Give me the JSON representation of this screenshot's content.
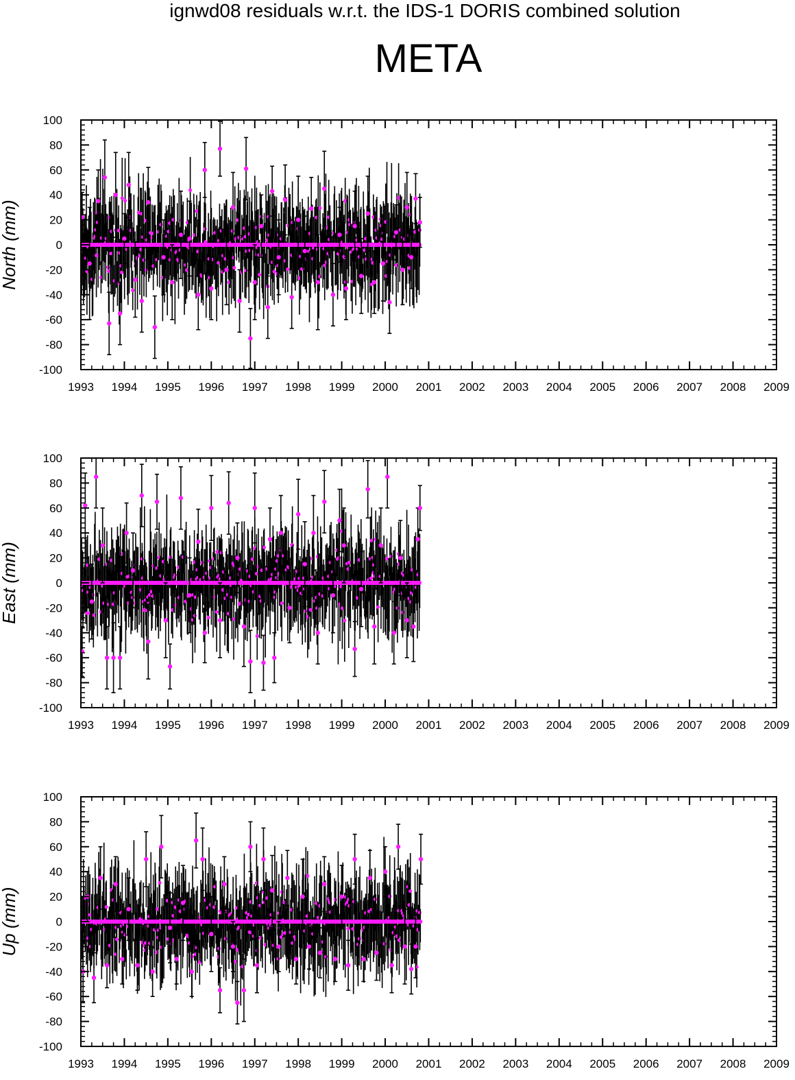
{
  "header": {
    "suptitle": "ignwd08 residuals w.r.t. the IDS-1 DORIS combined solution",
    "station": "META"
  },
  "colors": {
    "marker": "#ff1aff",
    "errorbar": "#000000",
    "axis": "#000000"
  },
  "chart_data": [
    {
      "type": "scatter",
      "panel": "north",
      "title": "",
      "ylabel": "North (mm)",
      "xlabel": "",
      "xlim": [
        1993,
        2009
      ],
      "ylim": [
        -100,
        100
      ],
      "xticks": [
        1993,
        1994,
        1995,
        1996,
        1997,
        1998,
        1999,
        2000,
        2001,
        2002,
        2003,
        2004,
        2005,
        2006,
        2007,
        2008,
        2009
      ],
      "yticks": [
        -100,
        -80,
        -60,
        -40,
        -20,
        0,
        20,
        40,
        60,
        80,
        100
      ],
      "grid": false,
      "error_bars": true,
      "series": [
        {
          "x": [
            1993.03,
            1993.2,
            1993.4,
            1993.55,
            1993.65,
            1993.8,
            1993.9,
            1994.0,
            1994.1,
            1994.25,
            1994.4,
            1994.55,
            1994.7,
            1994.9,
            1995.1,
            1995.3,
            1995.5,
            1995.7,
            1995.85,
            1996.0,
            1996.2,
            1996.35,
            1996.5,
            1996.65,
            1996.8,
            1996.9,
            1997.0,
            1997.15,
            1997.3,
            1997.4,
            1997.55,
            1997.7,
            1997.85,
            1998.0,
            1998.15,
            1998.3,
            1998.45,
            1998.6,
            1998.8,
            1998.95,
            1999.1,
            1999.3,
            1999.45,
            1999.6,
            1999.75,
            1999.95,
            2000.1,
            2000.25,
            2000.4,
            2000.5,
            2000.6,
            2000.7,
            2000.8
          ],
          "y": [
            22,
            -15,
            35,
            54,
            -63,
            40,
            -55,
            5,
            48,
            -28,
            -45,
            34,
            -66,
            -10,
            -30,
            8,
            5,
            -40,
            60,
            -35,
            77,
            -20,
            30,
            -45,
            61,
            -75,
            -30,
            15,
            -50,
            43,
            -10,
            36,
            -42,
            20,
            -5,
            29,
            -30,
            45,
            -40,
            8,
            -35,
            15,
            -25,
            25,
            -30,
            -15,
            -46,
            10,
            -20,
            30,
            -10,
            37,
            18
          ],
          "err": [
            20,
            45,
            25,
            30,
            25,
            34,
            25,
            20,
            26,
            30,
            25,
            28,
            25,
            30,
            30,
            35,
            30,
            28,
            22,
            25,
            22,
            28,
            28,
            25,
            25,
            24,
            30,
            25,
            25,
            20,
            30,
            28,
            25,
            35,
            28,
            25,
            38,
            30,
            25,
            22,
            25,
            28,
            30,
            30,
            25,
            30,
            25,
            22,
            28,
            28,
            25,
            20,
            20
          ]
        }
      ]
    },
    {
      "type": "scatter",
      "panel": "east",
      "title": "",
      "ylabel": "East (mm)",
      "xlabel": "",
      "xlim": [
        1993,
        2009
      ],
      "ylim": [
        -100,
        100
      ],
      "xticks": [
        1993,
        1994,
        1995,
        1996,
        1997,
        1998,
        1999,
        2000,
        2001,
        2002,
        2003,
        2004,
        2005,
        2006,
        2007,
        2008,
        2009
      ],
      "yticks": [
        -100,
        -80,
        -60,
        -40,
        -20,
        0,
        20,
        40,
        60,
        80,
        100
      ],
      "grid": false,
      "error_bars": true,
      "series": [
        {
          "x": [
            1993.03,
            1993.1,
            1993.25,
            1993.35,
            1993.5,
            1993.6,
            1993.75,
            1993.9,
            1994.05,
            1994.2,
            1994.4,
            1994.55,
            1994.75,
            1994.95,
            1995.05,
            1995.3,
            1995.5,
            1995.7,
            1995.85,
            1996.0,
            1996.2,
            1996.4,
            1996.6,
            1996.75,
            1996.9,
            1997.0,
            1997.2,
            1997.35,
            1997.45,
            1997.6,
            1997.8,
            1998.0,
            1998.15,
            1998.35,
            1998.45,
            1998.6,
            1998.8,
            1998.95,
            1999.05,
            1999.3,
            1999.45,
            1999.6,
            1999.75,
            1999.9,
            2000.05,
            2000.2,
            2000.35,
            2000.5,
            2000.65,
            2000.75,
            2000.8
          ],
          "y": [
            -55,
            62,
            -15,
            85,
            30,
            -60,
            -60,
            -60,
            40,
            10,
            70,
            -47,
            65,
            -30,
            -67,
            68,
            -10,
            33,
            -40,
            60,
            -30,
            64,
            20,
            -35,
            -63,
            60,
            -64,
            35,
            -60,
            40,
            -20,
            55,
            15,
            40,
            -40,
            65,
            -10,
            50,
            30,
            -53,
            -5,
            75,
            -35,
            30,
            85,
            -40,
            20,
            -30,
            -35,
            35,
            60
          ],
          "err": [
            20,
            26,
            30,
            25,
            30,
            25,
            28,
            25,
            24,
            30,
            25,
            30,
            22,
            30,
            18,
            25,
            30,
            26,
            24,
            26,
            30,
            25,
            28,
            32,
            25,
            28,
            22,
            25,
            20,
            30,
            28,
            28,
            34,
            30,
            25,
            25,
            30,
            25,
            30,
            22,
            30,
            23,
            30,
            30,
            25,
            25,
            30,
            30,
            28,
            25,
            18
          ]
        }
      ]
    },
    {
      "type": "scatter",
      "panel": "up",
      "title": "",
      "ylabel": "Up (mm)",
      "xlabel": "",
      "xlim": [
        1993,
        2009
      ],
      "ylim": [
        -100,
        100
      ],
      "xticks": [
        1993,
        1994,
        1995,
        1996,
        1997,
        1998,
        1999,
        2000,
        2001,
        2002,
        2003,
        2004,
        2005,
        2006,
        2007,
        2008,
        2009
      ],
      "yticks": [
        -100,
        -80,
        -60,
        -40,
        -20,
        0,
        20,
        40,
        60,
        80,
        100
      ],
      "grid": false,
      "error_bars": true,
      "series": [
        {
          "x": [
            1993.05,
            1993.15,
            1993.3,
            1993.45,
            1993.6,
            1993.8,
            1993.95,
            1994.1,
            1994.3,
            1994.5,
            1994.65,
            1994.85,
            1995.05,
            1995.2,
            1995.35,
            1995.55,
            1995.65,
            1995.8,
            1996.0,
            1996.2,
            1996.3,
            1996.5,
            1996.6,
            1996.75,
            1996.9,
            1997.05,
            1997.2,
            1997.4,
            1997.55,
            1997.75,
            1997.95,
            1998.1,
            1998.25,
            1998.5,
            1998.6,
            1998.85,
            1999.0,
            1999.15,
            1999.3,
            1999.5,
            1999.65,
            1999.8,
            2000.0,
            2000.15,
            2000.3,
            2000.45,
            2000.6,
            2000.7,
            2000.82
          ],
          "y": [
            -40,
            20,
            -45,
            35,
            -35,
            30,
            -30,
            10,
            -35,
            50,
            -40,
            60,
            -5,
            -30,
            15,
            -40,
            65,
            50,
            -10,
            -55,
            30,
            -20,
            -65,
            -55,
            60,
            -35,
            50,
            25,
            -20,
            35,
            -30,
            20,
            -20,
            -25,
            30,
            -30,
            20,
            -35,
            50,
            -30,
            35,
            -25,
            40,
            -35,
            60,
            -20,
            -38,
            -20,
            50
          ],
          "err": [
            25,
            20,
            20,
            25,
            18,
            22,
            20,
            25,
            20,
            22,
            20,
            25,
            28,
            20,
            30,
            20,
            22,
            25,
            30,
            18,
            22,
            20,
            17,
            25,
            20,
            22,
            25,
            28,
            20,
            22,
            20,
            30,
            18,
            20,
            22,
            18,
            25,
            20,
            20,
            18,
            22,
            22,
            20,
            22,
            18,
            30,
            20,
            25,
            20
          ]
        }
      ]
    }
  ]
}
